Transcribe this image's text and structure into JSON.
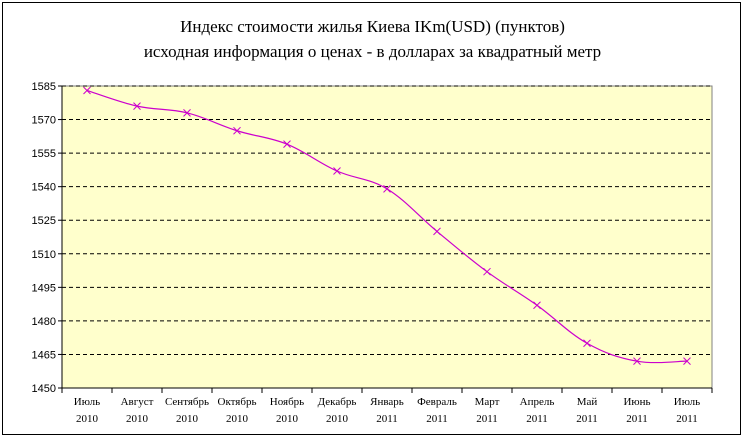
{
  "chart_data": {
    "type": "line",
    "title": "Индекс стоимости жилья Киева  IKm(USD)  (пунктов)",
    "subtitle": "исходная  информация о ценах -  в долларах за квадратный метр",
    "xlabel": "",
    "ylabel": "",
    "categories": [
      [
        "Июль",
        "2010"
      ],
      [
        "Август",
        "2010"
      ],
      [
        "Сентябрь",
        "2010"
      ],
      [
        "Октябрь",
        "2010"
      ],
      [
        "Ноябрь",
        "2010"
      ],
      [
        "Декабрь",
        "2010"
      ],
      [
        "Январь",
        "2011"
      ],
      [
        "Февраль",
        "2011"
      ],
      [
        "Март",
        "2011"
      ],
      [
        "Апрель",
        "2011"
      ],
      [
        "Май",
        "2011"
      ],
      [
        "Июнь",
        "2011"
      ],
      [
        "Июль",
        "2011"
      ]
    ],
    "series": [
      {
        "values": [
          1583,
          1576,
          1573,
          1565,
          1559,
          1547,
          1539,
          1520,
          1502,
          1487,
          1470,
          1462,
          1462
        ]
      }
    ],
    "ylim": [
      1450,
      1585
    ],
    "yticks": [
      1450,
      1465,
      1480,
      1495,
      1510,
      1525,
      1540,
      1555,
      1570,
      1585
    ],
    "grid": true,
    "legend": "none",
    "colors": {
      "plot_background": "#ffffcc",
      "line": "#cc00cc",
      "marker": "#cc00cc",
      "gridline": "#000000"
    }
  }
}
